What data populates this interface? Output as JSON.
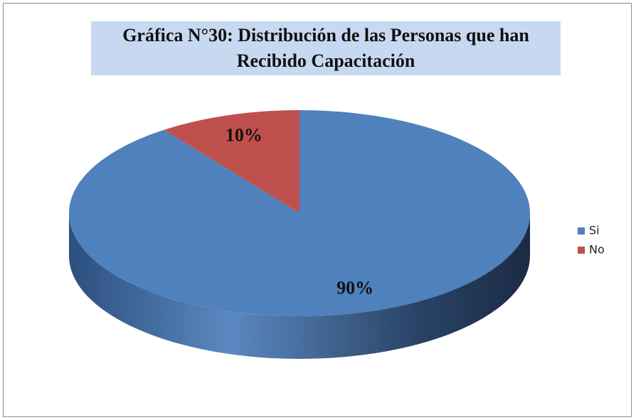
{
  "chart_data": {
    "type": "pie",
    "title": "Gráfica N°30: Distribución de las Personas que han Recibido Capacitación",
    "categories": [
      "Si",
      "No"
    ],
    "values": [
      90,
      10
    ],
    "value_labels": [
      "90%",
      "10%"
    ],
    "colors": [
      "#4f81bd",
      "#c0504d"
    ],
    "legend": "right"
  }
}
